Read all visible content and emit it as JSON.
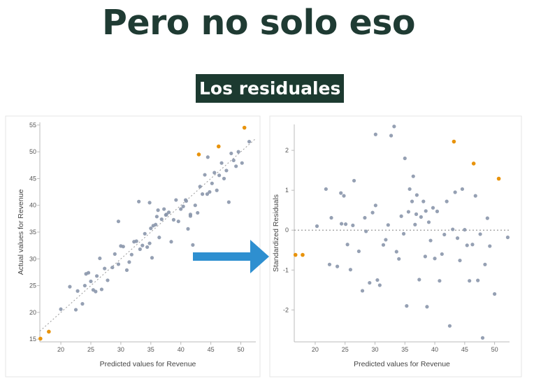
{
  "slide": {
    "title": "Pero no solo eso",
    "subtitle": "Los residuales"
  },
  "colors": {
    "point": "#8a96ab",
    "highlight": "#e8930c",
    "arrow": "#2e8fd0",
    "reference_line": "#9a9a9a",
    "title_text": "#1f3b33",
    "subtitle_bg": "#1c3a30"
  },
  "chart_data": [
    {
      "type": "scatter",
      "title": "",
      "xlabel": "Predicted values for Revenue",
      "ylabel": "Actual values for Revenue",
      "xlim": [
        16.5,
        52.5
      ],
      "ylim": [
        14.5,
        55.5
      ],
      "xticks": [
        20,
        25,
        30,
        35,
        40,
        45,
        50
      ],
      "yticks": [
        15,
        20,
        25,
        30,
        35,
        40,
        45,
        50,
        55
      ],
      "reference_line": "identity (dotted diagonal)",
      "series": [
        {
          "color": "point",
          "points": [
            [
              20,
              20.6
            ],
            [
              21.5,
              24.8
            ],
            [
              22.5,
              20.5
            ],
            [
              22.8,
              24
            ],
            [
              23.6,
              21.6
            ],
            [
              24,
              25
            ],
            [
              24.2,
              27.2
            ],
            [
              24.6,
              27.4
            ],
            [
              25,
              25.8
            ],
            [
              25.4,
              24.2
            ],
            [
              25.8,
              23.9
            ],
            [
              26,
              26.8
            ],
            [
              26.5,
              30.1
            ],
            [
              26.8,
              24.3
            ],
            [
              27.3,
              28.2
            ],
            [
              27.8,
              26
            ],
            [
              28.6,
              28.4
            ],
            [
              29,
              30.9
            ],
            [
              29.6,
              29
            ],
            [
              30,
              32.4
            ],
            [
              30.4,
              32.3
            ],
            [
              31,
              27.9
            ],
            [
              31.4,
              29.4
            ],
            [
              31.8,
              30.8
            ],
            [
              32.2,
              33.2
            ],
            [
              32.6,
              33.3
            ],
            [
              33.2,
              31.8
            ],
            [
              33.6,
              32.5
            ],
            [
              34,
              34.7
            ],
            [
              34.4,
              32.2
            ],
            [
              34.8,
              32.9
            ],
            [
              35,
              35.7
            ],
            [
              35.4,
              36.2
            ],
            [
              35.8,
              36.4
            ],
            [
              36,
              37.9
            ],
            [
              36.4,
              34
            ],
            [
              36.8,
              37.4
            ],
            [
              37.2,
              39.3
            ],
            [
              37.6,
              38.3
            ],
            [
              38,
              38.7
            ],
            [
              38.4,
              33.2
            ],
            [
              38.8,
              37.3
            ],
            [
              39.2,
              41
            ],
            [
              39.6,
              37
            ],
            [
              40,
              39.3
            ],
            [
              40.4,
              39.8
            ],
            [
              40.8,
              41
            ],
            [
              41.2,
              35.6
            ],
            [
              41.6,
              38
            ],
            [
              42,
              32.6
            ],
            [
              42.4,
              40
            ],
            [
              42.8,
              38.6
            ],
            [
              43.2,
              43.5
            ],
            [
              43.6,
              42.1
            ],
            [
              44,
              45.7
            ],
            [
              44.4,
              42.1
            ],
            [
              44.8,
              42.5
            ],
            [
              45.2,
              44.1
            ],
            [
              45.6,
              46.1
            ],
            [
              46,
              42.8
            ],
            [
              46.4,
              45.6
            ],
            [
              46.8,
              47.9
            ],
            [
              47.2,
              45
            ],
            [
              47.6,
              46.5
            ],
            [
              48,
              40.6
            ],
            [
              48.4,
              49.7
            ],
            [
              48.8,
              48.4
            ],
            [
              49.2,
              47.3
            ],
            [
              49.6,
              50
            ],
            [
              50.2,
              47.9
            ],
            [
              51.4,
              51.9
            ],
            [
              33,
              40.7
            ],
            [
              29.6,
              37
            ],
            [
              35.2,
              30.2
            ],
            [
              41.6,
              38.3
            ],
            [
              37.5,
              38.2
            ],
            [
              44.5,
              49
            ],
            [
              40.9,
              40.8
            ],
            [
              34.8,
              40.5
            ],
            [
              36.2,
              39.1
            ]
          ]
        },
        {
          "color": "highlight",
          "points": [
            [
              16.6,
              15.1
            ],
            [
              18,
              16.4
            ],
            [
              43,
              49.5
            ],
            [
              46.3,
              51
            ],
            [
              50.6,
              54.5
            ]
          ]
        }
      ]
    },
    {
      "type": "scatter",
      "title": "",
      "xlabel": "Predicted values for Revenue",
      "ylabel": "Standardized Residuals",
      "xlim": [
        16.5,
        52.5
      ],
      "ylim": [
        -2.8,
        2.65
      ],
      "xticks": [
        20,
        25,
        30,
        35,
        40,
        45,
        50
      ],
      "yticks": [
        -2,
        -1,
        0,
        1,
        2
      ],
      "reference_line": "y = 0 (dotted)",
      "series": [
        {
          "color": "point",
          "points": [
            [
              20.3,
              0.1
            ],
            [
              21.8,
              1.03
            ],
            [
              22.4,
              -0.86
            ],
            [
              22.7,
              0.31
            ],
            [
              23.7,
              -0.91
            ],
            [
              24.3,
              0.93
            ],
            [
              24.4,
              0.16
            ],
            [
              24.8,
              0.86
            ],
            [
              25.1,
              0.15
            ],
            [
              25.4,
              -0.36
            ],
            [
              25.9,
              -0.99
            ],
            [
              26.3,
              0.12
            ],
            [
              26.5,
              1.24
            ],
            [
              27.3,
              -0.53
            ],
            [
              27.9,
              -1.52
            ],
            [
              28.5,
              -0.03
            ],
            [
              29.1,
              -1.32
            ],
            [
              29.6,
              0.44
            ],
            [
              30.1,
              0.62
            ],
            [
              30.1,
              2.4
            ],
            [
              30.4,
              -1.25
            ],
            [
              30.8,
              -1.38
            ],
            [
              31.4,
              -0.37
            ],
            [
              31.8,
              -0.24
            ],
            [
              32.2,
              0.13
            ],
            [
              32.7,
              2.37
            ],
            [
              33.2,
              2.6
            ],
            [
              33.6,
              -0.54
            ],
            [
              34,
              -0.72
            ],
            [
              34.4,
              0.35
            ],
            [
              34.8,
              -0.09
            ],
            [
              35,
              1.8
            ],
            [
              35.3,
              -1.9
            ],
            [
              35.6,
              0.46
            ],
            [
              35.8,
              1.03
            ],
            [
              36.2,
              0.72
            ],
            [
              36.4,
              1.35
            ],
            [
              36.7,
              0.14
            ],
            [
              37,
              0.88
            ],
            [
              37.4,
              -1.24
            ],
            [
              37.7,
              0.33
            ],
            [
              38.1,
              0.72
            ],
            [
              38.4,
              -0.66
            ],
            [
              38.7,
              -1.92
            ],
            [
              39,
              0.2
            ],
            [
              39.3,
              -0.26
            ],
            [
              39.7,
              0.56
            ],
            [
              40,
              -0.71
            ],
            [
              40.4,
              0.47
            ],
            [
              40.8,
              -1.27
            ],
            [
              41.2,
              -0.6
            ],
            [
              41.6,
              -0.11
            ],
            [
              42,
              0.72
            ],
            [
              42.5,
              -2.4
            ],
            [
              43,
              0.02
            ],
            [
              43.4,
              0.95
            ],
            [
              43.8,
              -0.2
            ],
            [
              44.2,
              -0.76
            ],
            [
              44.6,
              1.03
            ],
            [
              45,
              0.01
            ],
            [
              45.4,
              -0.38
            ],
            [
              45.8,
              -1.27
            ],
            [
              46.3,
              -0.36
            ],
            [
              46.8,
              0.86
            ],
            [
              47.2,
              -1.26
            ],
            [
              47.6,
              -0.1
            ],
            [
              48,
              -2.7
            ],
            [
              48.4,
              -0.86
            ],
            [
              48.8,
              0.3
            ],
            [
              49.2,
              -0.4
            ],
            [
              50,
              -1.6
            ],
            [
              52.2,
              -0.18
            ],
            [
              28.3,
              0.31
            ],
            [
              38.5,
              0.48
            ],
            [
              36.9,
              0.4
            ]
          ]
        },
        {
          "color": "highlight",
          "points": [
            [
              16.7,
              -0.62
            ],
            [
              17.9,
              -0.62
            ],
            [
              43.2,
              2.22
            ],
            [
              46.5,
              1.67
            ],
            [
              50.7,
              1.29
            ]
          ]
        }
      ]
    }
  ]
}
